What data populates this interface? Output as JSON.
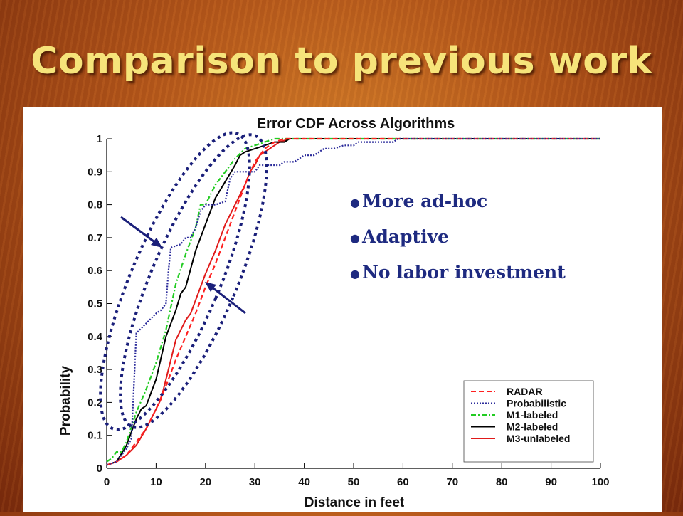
{
  "slide": {
    "title": "Comparison to previous work",
    "bullets": [
      "More ad-hoc",
      "Adaptive",
      "No labor investment"
    ],
    "colors": {
      "title": "#f6e47a",
      "bullets": "#1e2a80",
      "callout": "#1a1f7a"
    }
  },
  "chart_data": {
    "type": "line",
    "title": "Error CDF Across Algorithms",
    "xlabel": "Distance in feet",
    "ylabel": "Probability",
    "xlim": [
      0,
      100
    ],
    "ylim": [
      0,
      1
    ],
    "xticks": [
      0,
      10,
      20,
      30,
      40,
      50,
      60,
      70,
      80,
      90,
      100
    ],
    "yticks": [
      0,
      0.1,
      0.2,
      0.3,
      0.4,
      0.5,
      0.6,
      0.7,
      0.8,
      0.9,
      1
    ],
    "ytick_labels": [
      "0",
      "0.1",
      "0.2",
      "0.3",
      "0.4",
      "0.5",
      "0.6",
      "0.7",
      "0.8",
      "0.9",
      "1"
    ],
    "grid": false,
    "legend_position": "bottom-right",
    "series": [
      {
        "name": "RADAR",
        "color": "#ff2020",
        "dash": "dashed",
        "x": [
          0,
          2,
          4,
          6,
          8,
          10,
          12,
          14,
          16,
          18,
          20,
          22,
          24,
          26,
          28,
          30,
          32,
          34,
          36,
          38,
          40,
          50,
          60,
          70,
          80,
          90,
          100
        ],
        "y": [
          0.01,
          0.02,
          0.04,
          0.08,
          0.12,
          0.18,
          0.25,
          0.33,
          0.4,
          0.47,
          0.55,
          0.62,
          0.7,
          0.78,
          0.86,
          0.93,
          0.97,
          0.99,
          1,
          1,
          1,
          1,
          1,
          1,
          1,
          1,
          1
        ]
      },
      {
        "name": "Probabilistic",
        "color": "#2a2a9a",
        "dash": "dotted",
        "x": [
          0,
          2,
          3,
          4,
          5,
          5.5,
          6,
          8,
          10,
          11,
          12,
          12.5,
          13,
          15,
          16,
          17,
          18,
          19,
          20,
          21,
          22,
          24,
          25,
          26,
          27,
          30,
          31,
          32,
          35,
          36,
          38,
          40,
          41,
          42,
          44,
          46,
          48,
          50,
          51,
          52,
          55,
          58,
          59,
          60,
          100
        ],
        "y": [
          0.01,
          0.02,
          0.04,
          0.06,
          0.09,
          0.25,
          0.41,
          0.44,
          0.47,
          0.48,
          0.5,
          0.6,
          0.67,
          0.68,
          0.7,
          0.7,
          0.73,
          0.78,
          0.8,
          0.8,
          0.8,
          0.81,
          0.88,
          0.9,
          0.9,
          0.9,
          0.92,
          0.92,
          0.92,
          0.93,
          0.93,
          0.95,
          0.95,
          0.95,
          0.97,
          0.97,
          0.98,
          0.98,
          0.99,
          0.99,
          0.99,
          0.99,
          1,
          1,
          1
        ]
      },
      {
        "name": "M1-labeled",
        "color": "#22cc22",
        "dash": "dashdot",
        "x": [
          0,
          1,
          2,
          3,
          4,
          6,
          8,
          10,
          12,
          14,
          16,
          18,
          19,
          20,
          22,
          24,
          26,
          28,
          30,
          32,
          34,
          36,
          40,
          50,
          60,
          70,
          80,
          90,
          100
        ],
        "y": [
          0.02,
          0.03,
          0.05,
          0.05,
          0.08,
          0.17,
          0.24,
          0.32,
          0.42,
          0.56,
          0.65,
          0.73,
          0.8,
          0.8,
          0.86,
          0.9,
          0.94,
          0.97,
          0.98,
          0.99,
          1,
          1,
          1,
          1,
          1,
          1,
          1,
          1,
          1
        ]
      },
      {
        "name": "M2-labeled",
        "color": "#000000",
        "dash": "solid",
        "x": [
          0,
          2,
          4,
          6,
          7,
          8,
          10,
          12,
          14,
          15,
          16,
          18,
          20,
          22,
          24,
          26,
          27,
          28,
          30,
          32,
          34,
          35,
          36,
          37,
          38,
          100
        ],
        "y": [
          0.01,
          0.02,
          0.07,
          0.15,
          0.18,
          0.19,
          0.27,
          0.4,
          0.48,
          0.53,
          0.55,
          0.66,
          0.74,
          0.82,
          0.87,
          0.92,
          0.95,
          0.96,
          0.97,
          0.98,
          0.99,
          0.99,
          0.99,
          1,
          1,
          1
        ]
      },
      {
        "name": "M3-unlabeled",
        "color": "#e01a1a",
        "dash": "solid",
        "x": [
          0,
          2,
          4,
          6,
          8,
          10,
          11,
          12,
          14,
          16,
          17,
          18,
          20,
          22,
          24,
          26,
          28,
          29,
          30,
          31,
          33,
          35,
          37,
          40,
          50,
          60,
          70,
          80,
          90,
          100
        ],
        "y": [
          0.01,
          0.02,
          0.04,
          0.07,
          0.12,
          0.18,
          0.21,
          0.27,
          0.39,
          0.45,
          0.47,
          0.51,
          0.59,
          0.66,
          0.74,
          0.8,
          0.86,
          0.9,
          0.92,
          0.95,
          0.97,
          0.99,
          1,
          1,
          1,
          1,
          1,
          1,
          1,
          1
        ]
      }
    ]
  }
}
